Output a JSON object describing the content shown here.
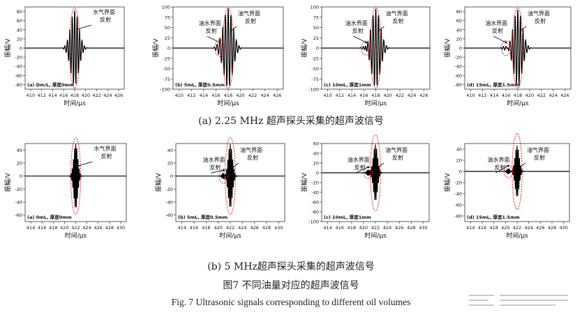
{
  "captions": {
    "row_a": "(a) 2.25 MHz 超声探头采集的超声波信号",
    "row_b": "(b) 5 MHz超声探头采集的超声波信号",
    "figure_title_cn": "图7 不同油量对应的超声波信号",
    "figure_title_en": "Fig. 7 Ultrasonic signals corresponding to different oil volumes"
  },
  "colors": {
    "signal": "#000000",
    "ellipse": "#e02020",
    "axis": "#333333"
  },
  "chart_data": [
    {
      "type": "line",
      "panel": "a1",
      "xlabel": "时间/μs",
      "ylabel": "振幅/V",
      "xlim": [
        409,
        427
      ],
      "ylim": [
        -90,
        90
      ],
      "xticks": [
        410,
        412,
        414,
        416,
        418,
        420,
        422,
        424,
        426
      ],
      "yticks": [
        -80,
        -60,
        -40,
        -20,
        0,
        20,
        40,
        60,
        80
      ],
      "panel_label": "(a) Dm/L, 厚度0mm",
      "series": [
        {
          "center": 418,
          "amplitude": 82,
          "freq_mhz": 2.25,
          "decay_us": 0.75
        }
      ],
      "annotations": [
        {
          "text": [
            "水气界面",
            "反射"
          ],
          "target_x": 418
        }
      ],
      "ellipses": [
        {
          "x": 418,
          "width_us": 1.1,
          "height": 176
        }
      ]
    },
    {
      "type": "line",
      "panel": "a2",
      "xlabel": "时间/μs",
      "ylabel": "振幅/V",
      "xlim": [
        409,
        427
      ],
      "ylim": [
        -100,
        100
      ],
      "xticks": [
        410,
        412,
        414,
        416,
        418,
        420,
        422,
        424,
        426
      ],
      "yticks": [
        -100,
        -75,
        -50,
        -25,
        0,
        25,
        50,
        75,
        100
      ],
      "panel_label": "(b) 5mL, 厚度0.5mm",
      "series": [
        {
          "center": 418,
          "amplitude": 96,
          "freq_mhz": 2.25,
          "decay_us": 0.75
        },
        {
          "center": 416.6,
          "amplitude": 7,
          "freq_mhz": 2.25,
          "decay_us": 0.5
        }
      ],
      "annotations": [
        {
          "text": [
            "油水界面",
            "反射"
          ],
          "target_x": 416.6
        },
        {
          "text": [
            "油气界面",
            "反射"
          ],
          "target_x": 418
        }
      ],
      "ellipses": [
        {
          "x": 416.6,
          "width_us": 0.9,
          "height": 40
        },
        {
          "x": 418,
          "width_us": 1.1,
          "height": 196
        }
      ]
    },
    {
      "type": "line",
      "panel": "a3",
      "xlabel": "时间/μs",
      "ylabel": "振幅/V",
      "xlim": [
        409,
        427
      ],
      "ylim": [
        -100,
        100
      ],
      "xticks": [
        410,
        412,
        414,
        416,
        418,
        420,
        422,
        424,
        426
      ],
      "yticks": [
        -100,
        -75,
        -50,
        -25,
        0,
        25,
        50,
        75,
        100
      ],
      "panel_label": "(c) 10mL, 厚度1mm",
      "series": [
        {
          "center": 418,
          "amplitude": 95,
          "freq_mhz": 2.25,
          "decay_us": 0.75
        },
        {
          "center": 416.4,
          "amplitude": 8,
          "freq_mhz": 2.25,
          "decay_us": 0.5
        }
      ],
      "annotations": [
        {
          "text": [
            "油水界面",
            "反射"
          ],
          "target_x": 416.4
        },
        {
          "text": [
            "油气界面",
            "反射"
          ],
          "target_x": 418
        }
      ],
      "ellipses": [
        {
          "x": 416.4,
          "width_us": 0.9,
          "height": 34
        },
        {
          "x": 418,
          "width_us": 1.1,
          "height": 196
        }
      ]
    },
    {
      "type": "line",
      "panel": "a4",
      "xlabel": "时间/μs",
      "ylabel": "振幅/V",
      "xlim": [
        409,
        427
      ],
      "ylim": [
        -90,
        90
      ],
      "xticks": [
        410,
        412,
        414,
        416,
        418,
        420,
        422,
        424,
        426
      ],
      "yticks": [
        -80,
        -60,
        -40,
        -20,
        0,
        20,
        40,
        60,
        80
      ],
      "panel_label": "(d) 15mL, 厚度1.5mm",
      "series": [
        {
          "center": 418,
          "amplitude": 84,
          "freq_mhz": 2.25,
          "decay_us": 0.75
        },
        {
          "center": 416,
          "amplitude": 6,
          "freq_mhz": 2.25,
          "decay_us": 0.5
        }
      ],
      "annotations": [
        {
          "text": [
            "油水界面",
            "反射"
          ],
          "target_x": 416
        },
        {
          "text": [
            "油气界面",
            "反射"
          ],
          "target_x": 418
        }
      ],
      "ellipses": [
        {
          "x": 416,
          "width_us": 0.9,
          "height": 32
        },
        {
          "x": 418,
          "width_us": 1.1,
          "height": 176
        }
      ]
    },
    {
      "type": "line",
      "panel": "b1",
      "xlabel": "时间/μs",
      "ylabel": "振幅/V",
      "xlim": [
        413,
        431
      ],
      "ylim": [
        -70,
        50
      ],
      "xticks": [
        414,
        416,
        418,
        420,
        422,
        424,
        426,
        428,
        430
      ],
      "yticks": [
        -60,
        -40,
        -20,
        0,
        20,
        40
      ],
      "panel_label": "(a) 0mL, 厚度0mm",
      "series": [
        {
          "center": 422,
          "amplitude": 50,
          "freq_mhz": 5,
          "decay_us": 0.35
        }
      ],
      "annotations": [
        {
          "text": [
            "水气界面",
            "反射"
          ],
          "target_x": 422
        }
      ],
      "ellipses": [
        {
          "x": 422,
          "width_us": 1.0,
          "height": 118
        }
      ]
    },
    {
      "type": "line",
      "panel": "b2",
      "xlabel": "时间/μs",
      "ylabel": "振幅/V",
      "xlim": [
        413,
        431
      ],
      "ylim": [
        -70,
        50
      ],
      "xticks": [
        414,
        416,
        418,
        420,
        422,
        424,
        426,
        428,
        430
      ],
      "yticks": [
        -60,
        -40,
        -20,
        0,
        20,
        40
      ],
      "panel_label": "(b) 5mL, 厚度0.5mm",
      "series": [
        {
          "center": 422,
          "amplitude": 49,
          "freq_mhz": 5,
          "decay_us": 0.35
        },
        {
          "center": 420.9,
          "amplitude": 5,
          "freq_mhz": 5,
          "decay_us": 0.25
        }
      ],
      "annotations": [
        {
          "text": [
            "油水界面",
            "反射"
          ],
          "target_x": 420.9
        },
        {
          "text": [
            "油气界面",
            "反射"
          ],
          "target_x": 422
        }
      ],
      "ellipses": [
        {
          "x": 420.9,
          "width_us": 0.8,
          "height": 22
        },
        {
          "x": 422,
          "width_us": 1.0,
          "height": 118
        }
      ]
    },
    {
      "type": "line",
      "panel": "b3",
      "xlabel": "时间/μs",
      "ylabel": "振幅/V",
      "xlim": [
        413,
        431
      ],
      "ylim": [
        -100,
        60
      ],
      "xticks": [
        414,
        416,
        418,
        420,
        422,
        424,
        426,
        428,
        430
      ],
      "yticks": [
        -100,
        -80,
        -60,
        -40,
        -20,
        0,
        20,
        40,
        60
      ],
      "panel_label": "(c) 10mL, 厚度1mm",
      "series": [
        {
          "center": 422,
          "amplitude": 58,
          "freq_mhz": 5,
          "decay_us": 0.35
        },
        {
          "center": 420.8,
          "amplitude": 6,
          "freq_mhz": 5,
          "decay_us": 0.25
        }
      ],
      "annotations": [
        {
          "text": [
            "油水界面",
            "反射"
          ],
          "target_x": 420.8
        },
        {
          "text": [
            "油气界面",
            "反射"
          ],
          "target_x": 422
        }
      ],
      "ellipses": [
        {
          "x": 420.8,
          "width_us": 0.8,
          "height": 24
        },
        {
          "x": 422,
          "width_us": 1.0,
          "height": 156
        }
      ]
    },
    {
      "type": "line",
      "panel": "b4",
      "xlabel": "时间/μs",
      "ylabel": "振幅/V",
      "xlim": [
        413,
        431
      ],
      "ylim": [
        -90,
        50
      ],
      "xticks": [
        414,
        416,
        418,
        420,
        422,
        424,
        426,
        428,
        430
      ],
      "yticks": [
        -80,
        -60,
        -40,
        -20,
        0,
        20,
        40
      ],
      "panel_label": "(d) 15mL, 厚度1.5mm",
      "series": [
        {
          "center": 422,
          "amplitude": 46,
          "freq_mhz": 5,
          "decay_us": 0.35
        },
        {
          "center": 420.5,
          "amplitude": 5,
          "freq_mhz": 5,
          "decay_us": 0.25
        }
      ],
      "annotations": [
        {
          "text": [
            "油水界面",
            "反射"
          ],
          "target_x": 420.5
        },
        {
          "text": [
            "油气界面",
            "反射"
          ],
          "target_x": 422
        }
      ],
      "ellipses": [
        {
          "x": 420.5,
          "width_us": 0.8,
          "height": 22
        },
        {
          "x": 422,
          "width_us": 1.0,
          "height": 136
        }
      ]
    }
  ]
}
